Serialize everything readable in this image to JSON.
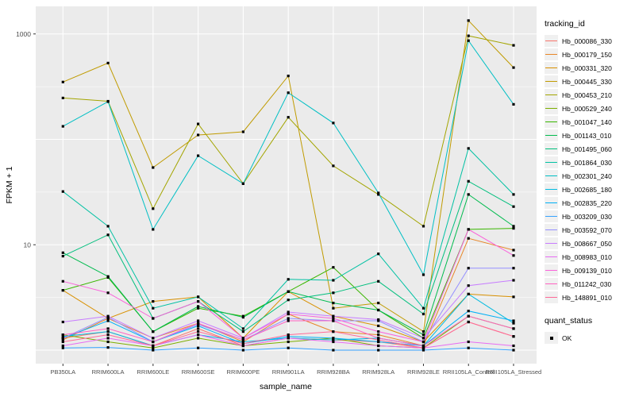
{
  "labels": {
    "y_axis_title": "FPKM + 1",
    "x_axis_title": "sample_name",
    "color_legend_title": "tracking_id",
    "shape_legend_title": "quant_status",
    "shape_legend_item": "OK",
    "y_tick_labels": [
      "1000",
      "10"
    ]
  },
  "style": {
    "panel_bg": "#EBEBEB",
    "grid_color": "#FFFFFF",
    "tick_text_color": "#4D4D4D",
    "tick_mark_color": "#333333",
    "marker_color": "#000000"
  },
  "chart_data": {
    "type": "line",
    "title": "",
    "xlabel": "sample_name",
    "ylabel": "FPKM + 1",
    "y_scale": "log10",
    "ylim": [
      1,
      1800
    ],
    "y_ticks_labeled": [
      10,
      1000
    ],
    "gridlines_major": [
      1,
      10,
      100,
      1000
    ],
    "gridlines_minor": [
      3.162,
      31.62,
      316.2
    ],
    "grid": true,
    "legend_position": "right",
    "point_shape": "filled-square (quant_status = OK)",
    "categories": [
      "PB350LA",
      "RRIM600LA",
      "RRIM600LE",
      "RRIM600SE",
      "RRIM600PE",
      "RRIM901LA",
      "RRIM928BA",
      "RRIM928LA",
      "RRIM928LE",
      "RRII105LA_Control",
      "RRII105LA_Stressed"
    ],
    "series": [
      {
        "name": "Hb_000086_330",
        "color": "#F8766D",
        "values": [
          1.3,
          1.5,
          1.1,
          1.6,
          1.1,
          1.3,
          1.25,
          1.2,
          1.05,
          1.85,
          1.35
        ]
      },
      {
        "name": "Hb_000179_150",
        "color": "#E88526",
        "values": [
          1.25,
          2.0,
          1.3,
          1.8,
          1.2,
          2.2,
          1.5,
          1.4,
          1.1,
          11.5,
          8.9
        ]
      },
      {
        "name": "Hb_000331_320",
        "color": "#D89000",
        "values": [
          3.7,
          2.0,
          2.9,
          3.2,
          1.3,
          3.6,
          2.1,
          1.7,
          1.2,
          3.4,
          3.2
        ]
      },
      {
        "name": "Hb_000445_330",
        "color": "#C09B00",
        "values": [
          350,
          530,
          54,
          110,
          118,
          400,
          2.5,
          2.8,
          1.5,
          1340,
          480
        ]
      },
      {
        "name": "Hb_000453_210",
        "color": "#A3A500",
        "values": [
          247,
          230,
          22,
          140,
          38,
          162,
          56,
          30,
          15,
          960,
          780
        ]
      },
      {
        "name": "Hb_000529_240",
        "color": "#7CAE00",
        "values": [
          1.4,
          1.2,
          1.05,
          1.3,
          1.1,
          1.2,
          1.3,
          1.1,
          1.05,
          2.1,
          1.6
        ]
      },
      {
        "name": "Hb_001047_140",
        "color": "#39B600",
        "values": [
          3.7,
          4.9,
          1.5,
          2.5,
          2.1,
          3.6,
          6.1,
          2.4,
          1.3,
          14,
          14.3
        ]
      },
      {
        "name": "Hb_001143_010",
        "color": "#00BB4E",
        "values": [
          8.4,
          5.0,
          1.5,
          2.6,
          2.05,
          3.6,
          2.8,
          2.4,
          1.4,
          30,
          15
        ]
      },
      {
        "name": "Hb_001495_060",
        "color": "#00BF7D",
        "values": [
          7.8,
          12.4,
          2.0,
          2.9,
          1.5,
          3.0,
          3.5,
          4.5,
          2.2,
          40,
          23
        ]
      },
      {
        "name": "Hb_001864_030",
        "color": "#00C1A3",
        "values": [
          32,
          15,
          2.5,
          3.2,
          1.6,
          4.7,
          4.6,
          8.2,
          2.5,
          82,
          30
        ]
      },
      {
        "name": "Hb_002301_240",
        "color": "#00BFC4",
        "values": [
          133,
          228,
          14,
          70,
          38,
          277,
          143,
          31,
          5.2,
          863,
          215
        ]
      },
      {
        "name": "Hb_002685_180",
        "color": "#00BAE0",
        "values": [
          1.35,
          1.5,
          1.1,
          1.4,
          1.2,
          1.3,
          1.25,
          1.3,
          1.1,
          3.4,
          1.8
        ]
      },
      {
        "name": "Hb_002835_220",
        "color": "#00B0F6",
        "values": [
          1.3,
          1.9,
          1.2,
          1.7,
          1.15,
          1.35,
          1.3,
          1.2,
          1.1,
          2.35,
          1.9
        ]
      },
      {
        "name": "Hb_003209_030",
        "color": "#35A2FF",
        "values": [
          1.05,
          1.06,
          1.0,
          1.05,
          1.0,
          1.05,
          1.0,
          1.0,
          1.0,
          1.05,
          1.0
        ]
      },
      {
        "name": "Hb_003592_070",
        "color": "#9590FF",
        "values": [
          1.3,
          2.05,
          1.2,
          1.75,
          1.25,
          2.0,
          1.9,
          1.9,
          1.2,
          6.0,
          6.0
        ]
      },
      {
        "name": "Hb_008667_050",
        "color": "#C77CFF",
        "values": [
          1.85,
          2.1,
          1.3,
          1.9,
          1.3,
          2.3,
          2.1,
          1.95,
          1.3,
          4.1,
          4.6
        ]
      },
      {
        "name": "Hb_008983_010",
        "color": "#E76BF3",
        "values": [
          1.1,
          1.3,
          1.1,
          1.4,
          1.1,
          1.3,
          1.2,
          1.1,
          1.05,
          1.2,
          1.1
        ]
      },
      {
        "name": "Hb_009139_010",
        "color": "#FA62DB",
        "values": [
          4.5,
          3.5,
          2.0,
          2.9,
          1.3,
          2.2,
          2.0,
          1.5,
          1.2,
          14,
          7.9
        ]
      },
      {
        "name": "Hb_011242_030",
        "color": "#FF61C3",
        "values": [
          1.4,
          1.6,
          1.2,
          1.8,
          1.25,
          1.9,
          1.9,
          1.3,
          1.1,
          2.1,
          1.6
        ]
      },
      {
        "name": "Hb_148891_010",
        "color": "#FF6A98",
        "values": [
          1.2,
          1.4,
          1.1,
          1.5,
          1.15,
          1.4,
          1.5,
          1.25,
          1.05,
          1.85,
          1.35
        ]
      }
    ]
  }
}
